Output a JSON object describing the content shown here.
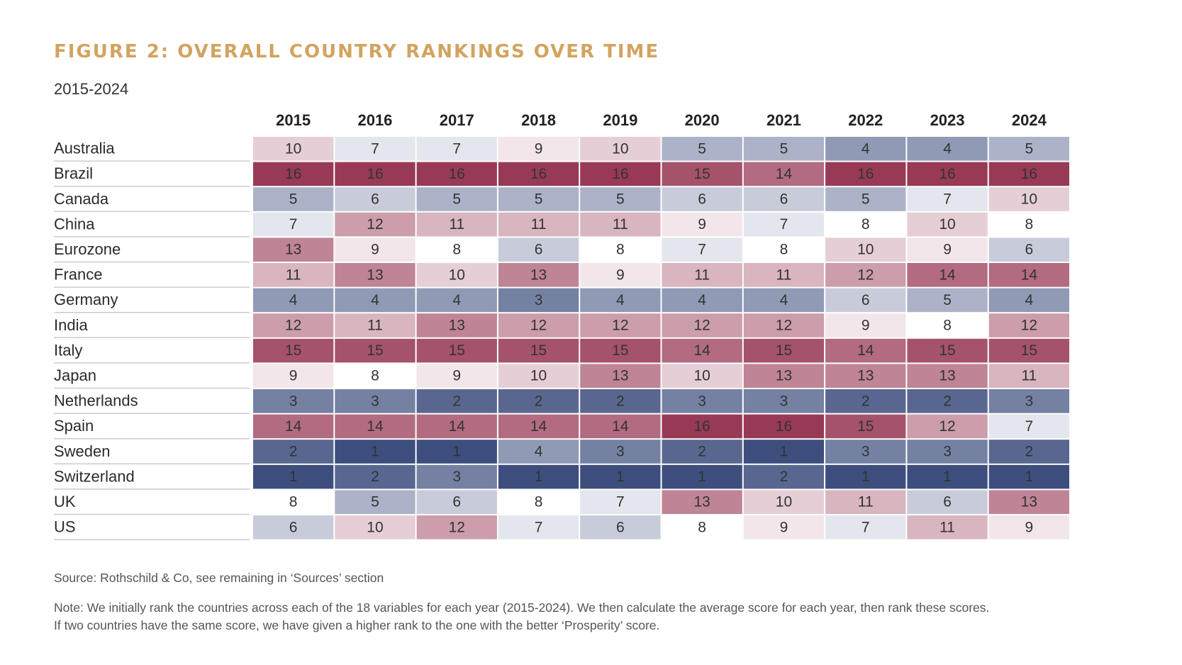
{
  "title": "FIGURE 2: OVERALL COUNTRY RANKINGS OVER TIME",
  "subtitle": "2015-2024",
  "source": "Source: Rothschild & Co, see remaining in ‘Sources’ section",
  "note_line1": "Note: We initially rank the countries across each of the 18 variables for each year (2015-2024). We then calculate the average score for each year, then rank these scores.",
  "note_line2": "If two countries have the same score, we have given a higher rank to the one with the better ‘Prosperity’ score.",
  "colors": {
    "title": "#d1a460",
    "rank_best": "#3d4e7e",
    "rank_mid": "#ffffff",
    "rank_worst": "#983a55"
  },
  "chart_data": {
    "type": "heatmap",
    "title": "FIGURE 2: OVERALL COUNTRY RANKINGS OVER TIME",
    "subtitle": "2015-2024",
    "x": [
      "2015",
      "2016",
      "2017",
      "2018",
      "2019",
      "2020",
      "2021",
      "2022",
      "2023",
      "2024"
    ],
    "y": [
      "Australia",
      "Brazil",
      "Canada",
      "China",
      "Eurozone",
      "France",
      "Germany",
      "India",
      "Italy",
      "Japan",
      "Netherlands",
      "Spain",
      "Sweden",
      "Switzerland",
      "UK",
      "US"
    ],
    "values": [
      [
        10,
        7,
        7,
        9,
        10,
        5,
        5,
        4,
        4,
        5
      ],
      [
        16,
        16,
        16,
        16,
        16,
        15,
        14,
        16,
        16,
        16
      ],
      [
        5,
        6,
        5,
        5,
        5,
        6,
        6,
        5,
        7,
        10
      ],
      [
        7,
        12,
        11,
        11,
        11,
        9,
        7,
        8,
        10,
        8
      ],
      [
        13,
        9,
        8,
        6,
        8,
        7,
        8,
        10,
        9,
        6
      ],
      [
        11,
        13,
        10,
        13,
        9,
        11,
        11,
        12,
        14,
        14
      ],
      [
        4,
        4,
        4,
        3,
        4,
        4,
        4,
        6,
        5,
        4
      ],
      [
        12,
        11,
        13,
        12,
        12,
        12,
        12,
        9,
        8,
        12
      ],
      [
        15,
        15,
        15,
        15,
        15,
        14,
        15,
        14,
        15,
        15
      ],
      [
        9,
        8,
        9,
        10,
        13,
        10,
        13,
        13,
        13,
        11
      ],
      [
        3,
        3,
        2,
        2,
        2,
        3,
        3,
        2,
        2,
        3
      ],
      [
        14,
        14,
        14,
        14,
        14,
        16,
        16,
        15,
        12,
        7
      ],
      [
        2,
        1,
        1,
        4,
        3,
        2,
        1,
        3,
        3,
        2
      ],
      [
        1,
        2,
        3,
        1,
        1,
        1,
        2,
        1,
        1,
        1
      ],
      [
        8,
        5,
        6,
        8,
        7,
        13,
        10,
        11,
        6,
        13
      ],
      [
        6,
        10,
        12,
        7,
        6,
        8,
        9,
        7,
        11,
        9
      ]
    ],
    "color_scale": "diverging: rank 1 = dark blue, rank 8 = white, rank 16 = dark red"
  }
}
